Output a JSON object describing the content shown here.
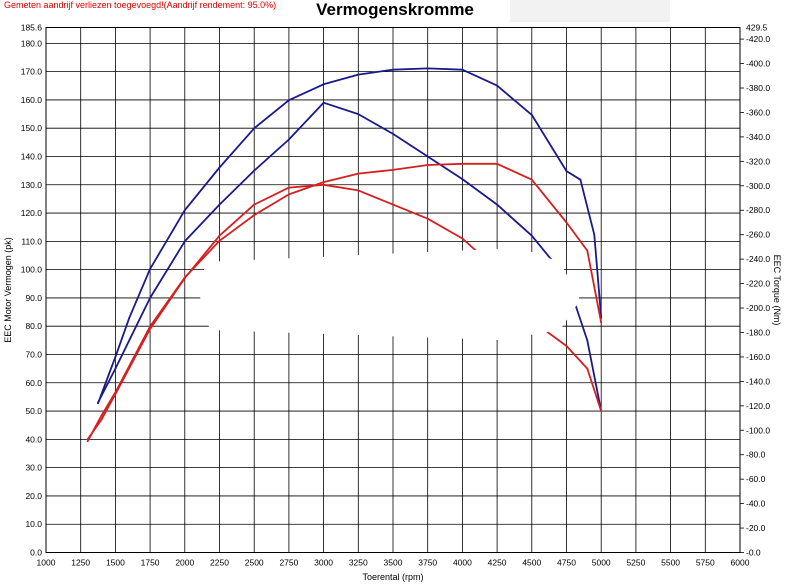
{
  "notice": "Gemeten aandrijf verliezen toegevoegd!(Aandrijf rendement: 95.0%)",
  "chart_data": {
    "type": "line",
    "title": "Vermogenskromme",
    "xlabel": "Toerental (rpm)",
    "ylabel_left": "EEC Motor Vermogen (pk)",
    "ylabel_right": "EEC Torque (Nm)",
    "xlim": [
      1000,
      6000
    ],
    "ylim_left": [
      0,
      185.6
    ],
    "ylim_right": [
      0,
      429.5
    ],
    "grid": true,
    "x_ticks": [
      "1000",
      "1250",
      "1500",
      "1750",
      "2000",
      "2250",
      "2500",
      "2750",
      "3000",
      "3250",
      "3500",
      "3750",
      "4000",
      "4250",
      "4500",
      "4750",
      "5000",
      "5250",
      "5500",
      "5750",
      "6000"
    ],
    "y_left_ticks": [
      "0.0",
      "10.0",
      "20.0",
      "30.0",
      "40.0",
      "50.0",
      "60.0",
      "70.0",
      "80.0",
      "90.0",
      "100.0",
      "110.0",
      "120.0",
      "130.0",
      "140.0",
      "150.0",
      "160.0",
      "170.0",
      "180.0"
    ],
    "y_left_top_label": "185.6",
    "y_right_ticks": [
      "0.0",
      "20.0",
      "40.0",
      "60.0",
      "80.0",
      "100.0",
      "120.0",
      "140.0",
      "160.0",
      "180.0",
      "200.0",
      "220.0",
      "240.0",
      "260.0",
      "280.0",
      "300.0",
      "320.0",
      "340.0",
      "360.0",
      "380.0",
      "400.0",
      "420.0"
    ],
    "y_right_top_label": "429.5",
    "colors": {
      "blue": "#1a1a8c",
      "red": "#d42020"
    },
    "series": [
      {
        "color": "blue",
        "axis": "right",
        "x": [
          1375,
          1450,
          1500,
          1600,
          1750,
          2000,
          2250,
          2500,
          2750,
          3000,
          3250,
          3500,
          3750,
          4000,
          4250,
          4500,
          4750,
          4850,
          4950,
          5000
        ],
        "y": [
          122,
          145,
          160,
          192,
          232,
          280,
          315,
          347,
          370,
          383,
          391,
          395,
          396,
          395,
          382,
          358,
          312,
          305,
          260,
          192
        ]
      },
      {
        "color": "blue",
        "axis": "left",
        "x": [
          1375,
          1500,
          1750,
          2000,
          2250,
          2500,
          2750,
          3000,
          3250,
          3500,
          3750,
          4000,
          4250,
          4500,
          4750,
          4900,
          5000
        ],
        "y": [
          53,
          65,
          90,
          110,
          123,
          135,
          146,
          159,
          155,
          148,
          140,
          132,
          123,
          112,
          97,
          75,
          50
        ]
      },
      {
        "color": "red",
        "axis": "right",
        "x": [
          1300,
          1400,
          1500,
          1750,
          2000,
          2250,
          2500,
          2750,
          3000,
          3250,
          3500,
          3750,
          4000,
          4250,
          4500,
          4750,
          4900,
          5000
        ],
        "y": [
          91,
          112,
          131,
          185,
          225,
          255,
          276,
          293,
          303,
          310,
          313,
          317,
          318,
          318,
          305,
          270,
          247,
          188
        ]
      },
      {
        "color": "red",
        "axis": "left",
        "x": [
          1300,
          1400,
          1500,
          1750,
          2000,
          2250,
          2500,
          2750,
          3000,
          3250,
          3500,
          3750,
          4000,
          4250,
          4500,
          4750,
          4900,
          5000
        ],
        "y": [
          40,
          47,
          56,
          79,
          97,
          112,
          123,
          129,
          130,
          128,
          123,
          118,
          111,
          100,
          82,
          73,
          65,
          50
        ]
      }
    ]
  }
}
